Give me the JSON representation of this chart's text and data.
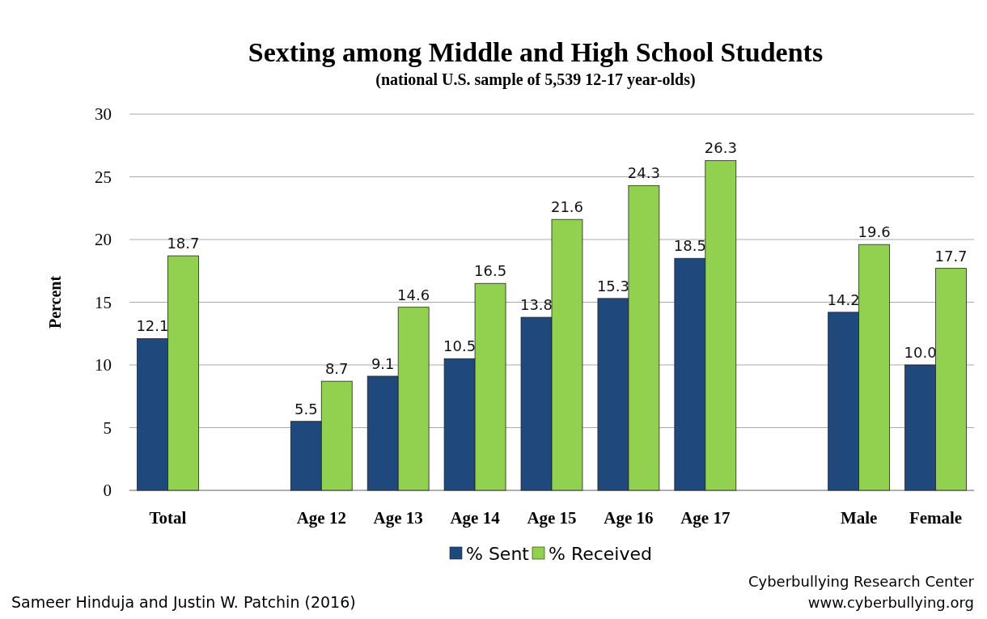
{
  "chart_data": {
    "type": "bar",
    "title": "Sexting among Middle and High School Students",
    "subtitle": "(national U.S. sample of 5,539 12-17 year-olds)",
    "ylabel": "Percent",
    "categories": [
      "Total",
      null,
      "Age 12",
      "Age 13",
      "Age 14",
      "Age 15",
      "Age 16",
      "Age 17",
      null,
      "Male",
      "Female"
    ],
    "series": [
      {
        "name": "% Sent",
        "color": "#1f497d",
        "values": [
          12.1,
          null,
          5.5,
          9.1,
          10.5,
          13.8,
          15.3,
          18.5,
          null,
          14.2,
          10.0
        ],
        "value_labels": [
          "12.1",
          null,
          "5.5",
          "9.1",
          "10.5",
          "13.8",
          "15.3",
          "18.5",
          null,
          "14.2",
          "10.0"
        ]
      },
      {
        "name": "% Received",
        "color": "#92d050",
        "values": [
          18.7,
          null,
          8.7,
          14.6,
          16.5,
          21.6,
          24.3,
          26.3,
          null,
          19.6,
          17.7
        ],
        "value_labels": [
          "18.7",
          null,
          "8.7",
          "14.6",
          "16.5",
          "21.6",
          "24.3",
          "26.3",
          null,
          "19.6",
          "17.7"
        ]
      }
    ],
    "ylim": [
      0,
      30
    ],
    "yticks": [
      0,
      5,
      10,
      15,
      20,
      25,
      30
    ],
    "grid": "y",
    "legend": "bottom",
    "annotations": [
      "Sameer Hinduja and Justin W. Patchin (2016)",
      "Cyberbullying Research Center",
      "www.cyberbullying.org"
    ]
  }
}
